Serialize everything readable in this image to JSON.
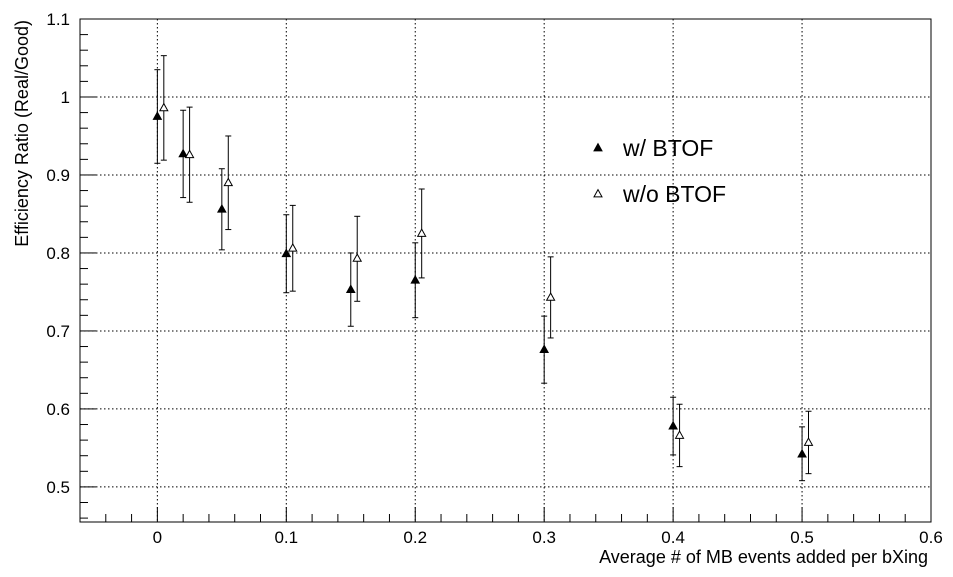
{
  "chart_data": {
    "type": "scatter",
    "title": "",
    "xlabel": "Average # of MB events added per bXing",
    "ylabel": "Efficiency Ratio (Real/Good)",
    "xlim": [
      -0.06,
      0.6
    ],
    "ylim": [
      0.455,
      1.1
    ],
    "xticks": [
      0,
      0.1,
      0.2,
      0.3,
      0.4,
      0.5,
      0.6
    ],
    "xtick_labels": [
      "0",
      "0.1",
      "0.2",
      "0.3",
      "0.4",
      "0.5",
      "0.6"
    ],
    "yticks": [
      0.5,
      0.6,
      0.7,
      0.8,
      0.9,
      1.0,
      1.1
    ],
    "ytick_labels": [
      "0.5",
      "0.6",
      "0.7",
      "0.8",
      "0.9",
      "1",
      "1.1"
    ],
    "grid": true,
    "legend_position": "center-right",
    "series": [
      {
        "name": "w/ BTOF",
        "marker": "filled-triangle",
        "color": "#000000",
        "x": [
          0.0,
          0.02,
          0.05,
          0.1,
          0.15,
          0.2,
          0.3,
          0.4,
          0.5
        ],
        "y": [
          0.975,
          0.927,
          0.856,
          0.799,
          0.753,
          0.765,
          0.676,
          0.578,
          0.542
        ],
        "err_low": [
          0.06,
          0.056,
          0.052,
          0.05,
          0.047,
          0.048,
          0.043,
          0.037,
          0.034
        ],
        "err_high": [
          0.06,
          0.056,
          0.052,
          0.05,
          0.047,
          0.048,
          0.043,
          0.037,
          0.035
        ]
      },
      {
        "name": "w/o BTOF",
        "marker": "open-triangle",
        "color": "#000000",
        "x": [
          0.005,
          0.025,
          0.055,
          0.105,
          0.155,
          0.205,
          0.305,
          0.405,
          0.505
        ],
        "y": [
          0.986,
          0.926,
          0.89,
          0.806,
          0.793,
          0.825,
          0.743,
          0.566,
          0.557
        ],
        "err_low": [
          0.067,
          0.061,
          0.06,
          0.055,
          0.055,
          0.057,
          0.052,
          0.04,
          0.04
        ],
        "err_high": [
          0.067,
          0.061,
          0.06,
          0.055,
          0.054,
          0.057,
          0.052,
          0.04,
          0.04
        ]
      }
    ]
  }
}
